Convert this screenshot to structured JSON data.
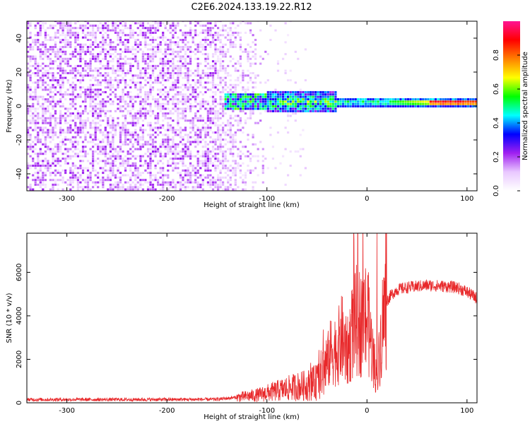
{
  "title": "C2E6.2024.133.19.22.R12",
  "colors": {
    "snr_line": "#e8282a",
    "colormap": [
      "#ffffff",
      "#e9c8ff",
      "#a020f0",
      "#0000ff",
      "#00ffff",
      "#00ff00",
      "#ffff00",
      "#ff8000",
      "#ff0000",
      "#ff1493"
    ]
  },
  "chart_data": [
    {
      "type": "heatmap",
      "title": "",
      "xlabel": "Height of straight line (km)",
      "ylabel": "Frequency (Hz)",
      "xlim": [
        -340,
        110
      ],
      "ylim": [
        -50,
        50
      ],
      "xticks": [
        -300,
        -200,
        -100,
        0,
        100
      ],
      "yticks": [
        -40,
        -20,
        0,
        20,
        40
      ],
      "grid": false,
      "description_points": {
        "noise_region_x": [
          -340,
          -100
        ],
        "band_center_hz": 1.5,
        "band_region_x": [
          -150,
          110
        ],
        "peak_amplitude_x": [
          70,
          100
        ]
      },
      "colorbar": {
        "label": "Normalized spectral amplitude",
        "range": [
          0.0,
          1.0
        ],
        "ticks": [
          0.0,
          0.2,
          0.4,
          0.6,
          0.8
        ]
      }
    },
    {
      "type": "line",
      "title": "",
      "xlabel": "Height of straight line (km)",
      "ylabel": "SNR (10 * v/v)",
      "xlim": [
        -340,
        110
      ],
      "ylim": [
        0,
        7800
      ],
      "xticks": [
        -300,
        -200,
        -100,
        0,
        100
      ],
      "yticks": [
        0,
        2000,
        4000,
        6000
      ],
      "grid": false,
      "series": [
        {
          "x": [
            -340,
            -300,
            -250,
            -200,
            -150,
            -130,
            -120,
            -110,
            -100,
            -90,
            -80,
            -70,
            -60,
            -50,
            -40,
            -35,
            -30,
            -25,
            -20,
            -15,
            -10,
            -5,
            0,
            5,
            10,
            15,
            20,
            25,
            30,
            40,
            50,
            60,
            70,
            80,
            90,
            100,
            110
          ],
          "y": [
            150,
            150,
            150,
            150,
            160,
            250,
            300,
            350,
            450,
            550,
            650,
            750,
            800,
            950,
            1800,
            2500,
            2400,
            3000,
            2200,
            3200,
            3800,
            3600,
            4000,
            2500,
            1000,
            3500,
            4700,
            5000,
            5200,
            5300,
            5350,
            5400,
            5380,
            5350,
            5300,
            5100,
            4800
          ]
        }
      ],
      "spikes": [
        {
          "x": -13,
          "y": 7500
        },
        {
          "x": 10,
          "y": 7800
        },
        {
          "x": 8,
          "y": 800
        }
      ]
    }
  ]
}
